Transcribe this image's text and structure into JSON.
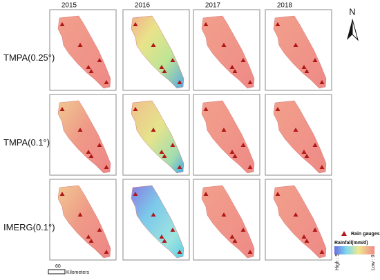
{
  "columns": [
    "2015",
    "2016",
    "2017",
    "2018"
  ],
  "rows": [
    "TMPA(0.25°)",
    "TMPA(0.1°)",
    "IMERG(0.1°)"
  ],
  "north": "N",
  "legend": {
    "gauges": "Rain gauges",
    "rainfall": "Rainfall(mm/d)",
    "high": "High : 9",
    "low": "Low : 0"
  },
  "scale_bar": {
    "distance": "60",
    "unit": "Kilometers"
  }
}
